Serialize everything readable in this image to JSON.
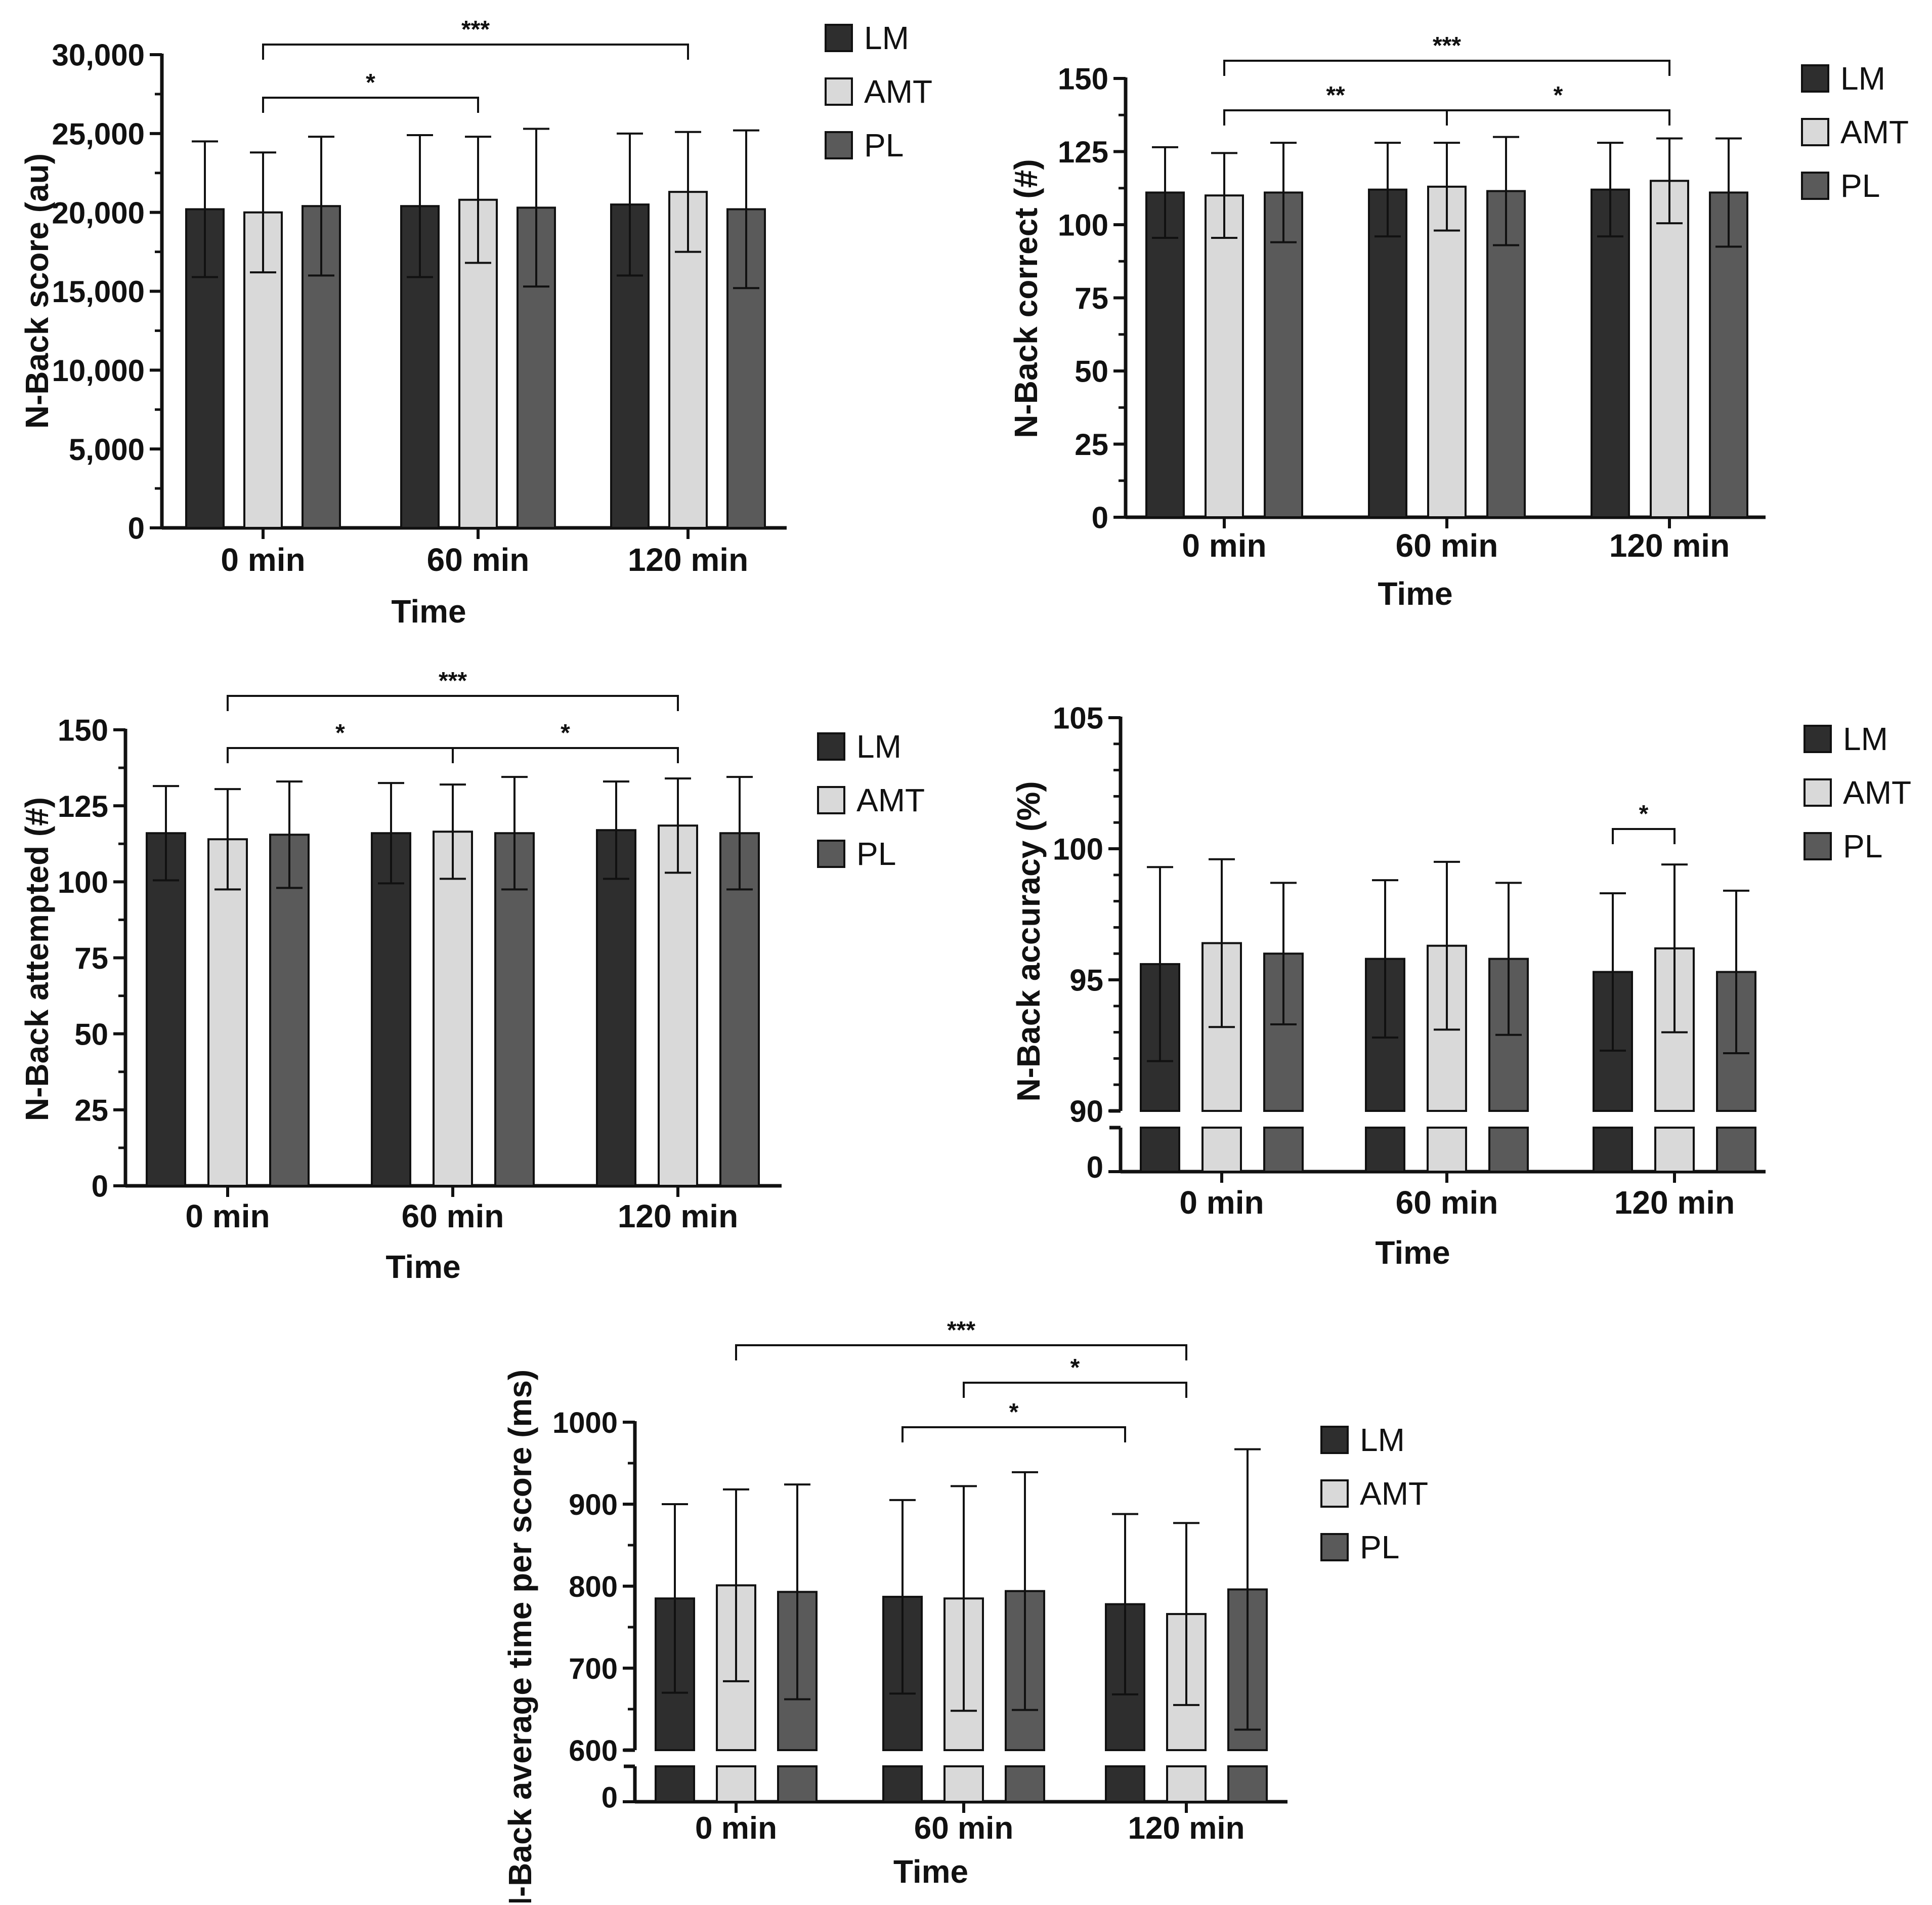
{
  "legend": {
    "entries": [
      {
        "label": "LM",
        "color": "#2e2e2e"
      },
      {
        "label": "AMT",
        "color": "#d9d9d9"
      },
      {
        "label": "PL",
        "color": "#5a5a5a"
      }
    ]
  },
  "colors": {
    "LM": "#2e2e2e",
    "AMT": "#d9d9d9",
    "PL": "#5a5a5a",
    "axis": "#111111",
    "text": "#111111"
  },
  "chart_data": [
    {
      "id": "score",
      "type": "bar",
      "ylabel": "N-Back score (au)",
      "xlabel": "Time",
      "categories": [
        "0 min",
        "60 min",
        "120 min"
      ],
      "ylim": [
        0,
        30000
      ],
      "yticks": [
        0,
        5000,
        10000,
        15000,
        20000,
        25000,
        30000
      ],
      "ytick_labels": [
        "0",
        "5,000",
        "10,000",
        "15,000",
        "20,000",
        "25,000",
        "30,000"
      ],
      "series": [
        {
          "name": "LM",
          "values": [
            20200,
            20400,
            20500
          ],
          "errors": [
            4300,
            4500,
            4500
          ]
        },
        {
          "name": "AMT",
          "values": [
            20000,
            20800,
            21300
          ],
          "errors": [
            3800,
            4000,
            3800
          ]
        },
        {
          "name": "PL",
          "values": [
            20400,
            20300,
            20200
          ],
          "errors": [
            4400,
            5000,
            5000
          ]
        }
      ],
      "significance": [
        {
          "from": [
            0,
            1
          ],
          "to": [
            2,
            1
          ],
          "label": "***"
        },
        {
          "from": [
            0,
            1
          ],
          "to": [
            1,
            1
          ],
          "label": "*"
        }
      ]
    },
    {
      "id": "correct",
      "type": "bar",
      "ylabel": "N-Back correct (#)",
      "xlabel": "Time",
      "categories": [
        "0 min",
        "60 min",
        "120 min"
      ],
      "ylim": [
        0,
        150
      ],
      "yticks": [
        0,
        25,
        50,
        75,
        100,
        125,
        150
      ],
      "ytick_labels": [
        "0",
        "25",
        "50",
        "75",
        "100",
        "125",
        "150"
      ],
      "series": [
        {
          "name": "LM",
          "values": [
            111,
            112,
            112
          ],
          "errors": [
            15.5,
            16,
            16
          ]
        },
        {
          "name": "AMT",
          "values": [
            110,
            113,
            115
          ],
          "errors": [
            14.5,
            15,
            14.5
          ]
        },
        {
          "name": "PL",
          "values": [
            111,
            111.5,
            111
          ],
          "errors": [
            17,
            18.5,
            18.5
          ]
        }
      ],
      "significance": [
        {
          "from": [
            0,
            1
          ],
          "to": [
            2,
            1
          ],
          "label": "***"
        },
        {
          "from": [
            0,
            1
          ],
          "to": [
            1,
            1
          ],
          "label": "**"
        },
        {
          "from": [
            1,
            1
          ],
          "to": [
            2,
            1
          ],
          "label": "*"
        }
      ]
    },
    {
      "id": "attempted",
      "type": "bar",
      "ylabel": "N-Back attempted (#)",
      "xlabel": "Time",
      "categories": [
        "0 min",
        "60 min",
        "120 min"
      ],
      "ylim": [
        0,
        150
      ],
      "yticks": [
        0,
        25,
        50,
        75,
        100,
        125,
        150
      ],
      "ytick_labels": [
        "0",
        "25",
        "50",
        "75",
        "100",
        "125",
        "150"
      ],
      "series": [
        {
          "name": "LM",
          "values": [
            116,
            116,
            117
          ],
          "errors": [
            15.5,
            16.5,
            16
          ]
        },
        {
          "name": "AMT",
          "values": [
            114,
            116.5,
            118.5
          ],
          "errors": [
            16.5,
            15.5,
            15.5
          ]
        },
        {
          "name": "PL",
          "values": [
            115.5,
            116,
            116
          ],
          "errors": [
            17.5,
            18.5,
            18.5
          ]
        }
      ],
      "significance": [
        {
          "from": [
            0,
            1
          ],
          "to": [
            2,
            1
          ],
          "label": "***"
        },
        {
          "from": [
            0,
            1
          ],
          "to": [
            1,
            1
          ],
          "label": "*"
        },
        {
          "from": [
            1,
            1
          ],
          "to": [
            2,
            1
          ],
          "label": "*"
        }
      ]
    },
    {
      "id": "accuracy",
      "type": "bar",
      "ylabel": "N-Back accuracy (%)",
      "xlabel": "Time",
      "categories": [
        "0 min",
        "60 min",
        "120 min"
      ],
      "ylim": [
        90,
        105
      ],
      "axis_break": {
        "low": 0,
        "high": 90
      },
      "yticks": [
        90,
        95,
        100,
        105
      ],
      "ytick_labels": [
        "90",
        "95",
        "100",
        "105"
      ],
      "break_tick_label": "0",
      "series": [
        {
          "name": "LM",
          "values": [
            95.6,
            95.8,
            95.3
          ],
          "errors": [
            3.7,
            3.0,
            3.0
          ]
        },
        {
          "name": "AMT",
          "values": [
            96.4,
            96.3,
            96.2
          ],
          "errors": [
            3.2,
            3.2,
            3.2
          ]
        },
        {
          "name": "PL",
          "values": [
            96.0,
            95.8,
            95.3
          ],
          "errors": [
            2.7,
            2.9,
            3.1
          ]
        }
      ],
      "significance": [
        {
          "from": [
            2,
            0
          ],
          "to": [
            2,
            1
          ],
          "label": "*"
        }
      ]
    },
    {
      "id": "avgtime",
      "type": "bar",
      "ylabel": "N-Back average time per score (ms)",
      "xlabel": "Time",
      "categories": [
        "0 min",
        "60 min",
        "120 min"
      ],
      "ylim": [
        600,
        1000
      ],
      "axis_break": {
        "low": 0,
        "high": 600
      },
      "yticks": [
        600,
        700,
        800,
        900,
        1000
      ],
      "ytick_labels": [
        "600",
        "700",
        "800",
        "900",
        "1000"
      ],
      "break_tick_label": "0",
      "series": [
        {
          "name": "LM",
          "values": [
            785,
            787,
            778
          ],
          "errors": [
            115,
            118,
            110
          ]
        },
        {
          "name": "AMT",
          "values": [
            801,
            785,
            766
          ],
          "errors": [
            117,
            137,
            111
          ]
        },
        {
          "name": "PL",
          "values": [
            793,
            794,
            796
          ],
          "errors": [
            131,
            145,
            171
          ]
        }
      ],
      "significance": [
        {
          "from": [
            0,
            1
          ],
          "to": [
            2,
            1
          ],
          "label": "***"
        },
        {
          "from": [
            1,
            1
          ],
          "to": [
            2,
            1
          ],
          "label": "*"
        },
        {
          "from": [
            1,
            0
          ],
          "to": [
            2,
            0
          ],
          "label": "*"
        }
      ]
    }
  ]
}
